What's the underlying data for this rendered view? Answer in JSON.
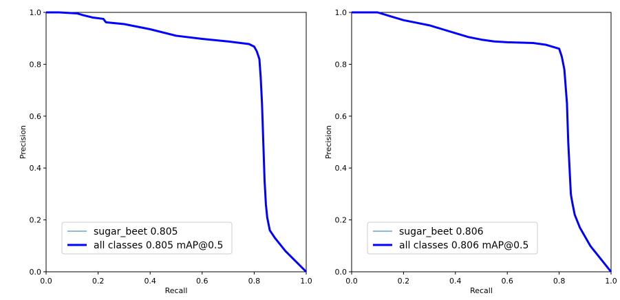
{
  "chart_data": [
    {
      "type": "line",
      "xlabel": "Recall",
      "ylabel": "Precision",
      "xlim": [
        0.0,
        1.0
      ],
      "ylim": [
        0.0,
        1.0
      ],
      "xticks": [
        "0.0",
        "0.2",
        "0.4",
        "0.6",
        "0.8",
        "1.0"
      ],
      "yticks": [
        "0.0",
        "0.2",
        "0.4",
        "0.6",
        "0.8",
        "1.0"
      ],
      "grid": false,
      "legend_position": "lower-left",
      "series": [
        {
          "name": "sugar_beet 0.805",
          "color": "#1f77b4",
          "linewidth": "thin",
          "x": [
            0.0,
            0.05,
            0.12,
            0.14,
            0.18,
            0.22,
            0.23,
            0.3,
            0.4,
            0.5,
            0.6,
            0.7,
            0.78,
            0.8,
            0.81,
            0.82,
            0.825,
            0.83,
            0.835,
            0.84,
            0.845,
            0.85,
            0.86,
            0.88,
            0.92,
            1.0
          ],
          "y": [
            1.0,
            1.0,
            0.996,
            0.99,
            0.98,
            0.975,
            0.962,
            0.955,
            0.935,
            0.91,
            0.898,
            0.888,
            0.878,
            0.868,
            0.85,
            0.82,
            0.75,
            0.65,
            0.5,
            0.35,
            0.26,
            0.21,
            0.16,
            0.13,
            0.08,
            0.0
          ]
        },
        {
          "name": "all classes 0.805 mAP@0.5",
          "color": "#0000ff",
          "linewidth": "thick",
          "x": [
            0.0,
            0.05,
            0.12,
            0.14,
            0.18,
            0.22,
            0.23,
            0.3,
            0.4,
            0.5,
            0.6,
            0.7,
            0.78,
            0.8,
            0.81,
            0.82,
            0.825,
            0.83,
            0.835,
            0.84,
            0.845,
            0.85,
            0.86,
            0.88,
            0.92,
            1.0
          ],
          "y": [
            1.0,
            1.0,
            0.996,
            0.99,
            0.98,
            0.975,
            0.962,
            0.955,
            0.935,
            0.91,
            0.898,
            0.888,
            0.878,
            0.868,
            0.85,
            0.82,
            0.75,
            0.65,
            0.5,
            0.35,
            0.26,
            0.21,
            0.16,
            0.13,
            0.08,
            0.0
          ]
        }
      ]
    },
    {
      "type": "line",
      "xlabel": "Recall",
      "ylabel": "Precision",
      "xlim": [
        0.0,
        1.0
      ],
      "ylim": [
        0.0,
        1.0
      ],
      "xticks": [
        "0.0",
        "0.2",
        "0.4",
        "0.6",
        "0.8",
        "1.0"
      ],
      "yticks": [
        "0.0",
        "0.2",
        "0.4",
        "0.6",
        "0.8",
        "1.0"
      ],
      "grid": false,
      "legend_position": "lower-left",
      "series": [
        {
          "name": "sugar_beet 0.806",
          "color": "#1f77b4",
          "linewidth": "thin",
          "x": [
            0.0,
            0.1,
            0.15,
            0.2,
            0.25,
            0.3,
            0.35,
            0.4,
            0.45,
            0.5,
            0.55,
            0.6,
            0.7,
            0.75,
            0.8,
            0.81,
            0.82,
            0.83,
            0.835,
            0.84,
            0.845,
            0.85,
            0.86,
            0.88,
            0.92,
            1.0
          ],
          "y": [
            1.0,
            1.0,
            0.985,
            0.97,
            0.96,
            0.95,
            0.935,
            0.92,
            0.905,
            0.895,
            0.888,
            0.885,
            0.882,
            0.875,
            0.86,
            0.83,
            0.78,
            0.65,
            0.5,
            0.4,
            0.3,
            0.27,
            0.22,
            0.17,
            0.1,
            0.0
          ]
        },
        {
          "name": "all classes 0.806 mAP@0.5",
          "color": "#0000ff",
          "linewidth": "thick",
          "x": [
            0.0,
            0.1,
            0.15,
            0.2,
            0.25,
            0.3,
            0.35,
            0.4,
            0.45,
            0.5,
            0.55,
            0.6,
            0.7,
            0.75,
            0.8,
            0.81,
            0.82,
            0.83,
            0.835,
            0.84,
            0.845,
            0.85,
            0.86,
            0.88,
            0.92,
            1.0
          ],
          "y": [
            1.0,
            1.0,
            0.985,
            0.97,
            0.96,
            0.95,
            0.935,
            0.92,
            0.905,
            0.895,
            0.888,
            0.885,
            0.882,
            0.875,
            0.86,
            0.83,
            0.78,
            0.65,
            0.5,
            0.4,
            0.3,
            0.27,
            0.22,
            0.17,
            0.1,
            0.0
          ]
        }
      ]
    }
  ]
}
